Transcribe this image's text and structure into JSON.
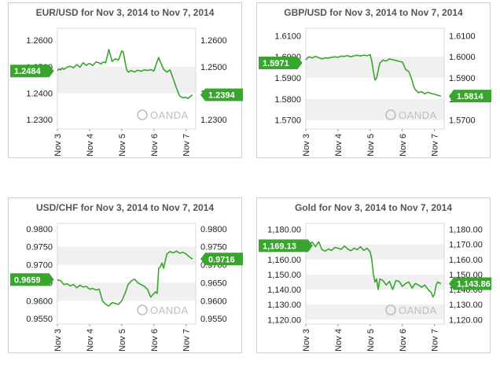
{
  "colors": {
    "line": "#3aa52e",
    "badge": "#3aa52e",
    "band": "#f0f0f0",
    "border": "#cfcfcf"
  },
  "watermark": "OANDA",
  "watermark_icon": "oanda-logo-icon",
  "chart_data": [
    {
      "type": "line",
      "title": "EUR/USD for Nov 3, 2014 to Nov 7, 2014",
      "x_ticks": [
        "Nov 3",
        "Nov 4",
        "Nov 5",
        "Nov 6",
        "Nov 7"
      ],
      "x_range": [
        0,
        4.3
      ],
      "y_ticks": [
        "1.2600",
        "1.2500",
        "1.2400",
        "1.2300"
      ],
      "y_tick_values": [
        1.26,
        1.25,
        1.24,
        1.23
      ],
      "ylim": [
        1.2265,
        1.2645
      ],
      "open_label": "1.2484",
      "open_value": 1.2484,
      "last_label": "1.2394",
      "last_value": 1.2394,
      "series": [
        {
          "x": [
            0,
            0.05,
            0.1,
            0.15,
            0.2,
            0.3,
            0.4,
            0.5,
            0.6,
            0.7,
            0.8,
            0.9,
            0.95,
            1.0,
            1.1,
            1.2,
            1.3,
            1.35,
            1.4,
            1.45,
            1.5,
            1.6,
            1.7,
            1.8,
            1.9,
            2.0,
            2.05,
            2.1,
            2.15,
            2.2,
            2.3,
            2.4,
            2.5,
            2.6,
            2.7,
            2.8,
            2.9,
            3.0,
            3.1,
            3.15,
            3.2,
            3.25,
            3.3,
            3.4,
            3.5,
            3.6,
            3.7,
            3.8,
            3.9,
            4.0,
            4.05,
            4.1,
            4.2
          ],
          "y": [
            1.2485,
            1.2492,
            1.2488,
            1.2495,
            1.249,
            1.2498,
            1.2502,
            1.2496,
            1.2508,
            1.2498,
            1.2515,
            1.2505,
            1.251,
            1.2512,
            1.2505,
            1.2518,
            1.2515,
            1.251,
            1.2516,
            1.2518,
            1.2515,
            1.2565,
            1.252,
            1.253,
            1.2525,
            1.256,
            1.2555,
            1.252,
            1.249,
            1.248,
            1.2486,
            1.248,
            1.2487,
            1.2483,
            1.2488,
            1.2486,
            1.2489,
            1.2484,
            1.252,
            1.2535,
            1.2518,
            1.2505,
            1.249,
            1.248,
            1.2488,
            1.2455,
            1.242,
            1.239,
            1.2383,
            1.2385,
            1.238,
            1.2385,
            1.2394
          ]
        }
      ]
    },
    {
      "type": "line",
      "title": "GBP/USD for Nov 3, 2014 to Nov 7, 2014",
      "x_ticks": [
        "Nov 3",
        "Nov 4",
        "Nov 5",
        "Nov 6",
        "Nov 7"
      ],
      "x_range": [
        0,
        4.3
      ],
      "y_ticks": [
        "1.6100",
        "1.6000",
        "1.5900",
        "1.5800",
        "1.5700"
      ],
      "y_tick_values": [
        1.61,
        1.6,
        1.59,
        1.58,
        1.57
      ],
      "ylim": [
        1.5658,
        1.6135
      ],
      "open_label": "1.5971",
      "open_value": 1.5971,
      "last_label": "1.5814",
      "last_value": 1.5814,
      "series": [
        {
          "x": [
            0,
            0.05,
            0.1,
            0.2,
            0.3,
            0.4,
            0.5,
            0.6,
            0.7,
            0.8,
            0.9,
            1.0,
            1.1,
            1.2,
            1.3,
            1.4,
            1.5,
            1.6,
            1.7,
            1.8,
            1.9,
            2.0,
            2.05,
            2.1,
            2.15,
            2.2,
            2.3,
            2.4,
            2.5,
            2.6,
            2.7,
            2.8,
            2.9,
            3.0,
            3.05,
            3.1,
            3.2,
            3.3,
            3.35,
            3.4,
            3.5,
            3.6,
            3.7,
            3.8,
            3.9,
            4.0,
            4.1,
            4.2
          ],
          "y": [
            1.5985,
            1.5995,
            1.6,
            1.5995,
            1.6002,
            1.5996,
            1.599,
            1.5995,
            1.5994,
            1.5998,
            1.6,
            1.5998,
            1.6003,
            1.6002,
            1.6006,
            1.6,
            1.6005,
            1.6007,
            1.6004,
            1.6008,
            1.6005,
            1.601,
            1.598,
            1.593,
            1.589,
            1.59,
            1.597,
            1.5985,
            1.598,
            1.599,
            1.5986,
            1.5983,
            1.5978,
            1.5975,
            1.596,
            1.594,
            1.593,
            1.589,
            1.586,
            1.5845,
            1.583,
            1.5835,
            1.5825,
            1.5832,
            1.5826,
            1.5823,
            1.5818,
            1.5814
          ]
        }
      ]
    },
    {
      "type": "line",
      "title": "USD/CHF for Nov 3, 2014 to Nov 7, 2014",
      "x_ticks": [
        "Nov 3",
        "Nov 4",
        "Nov 5",
        "Nov 6",
        "Nov 7"
      ],
      "x_range": [
        0,
        4.3
      ],
      "y_ticks": [
        "0.9800",
        "0.9750",
        "0.9700",
        "0.9650",
        "0.9600",
        "0.9550"
      ],
      "y_tick_values": [
        0.98,
        0.975,
        0.97,
        0.965,
        0.96,
        0.955
      ],
      "ylim": [
        0.9535,
        0.9815
      ],
      "open_label": "0.9659",
      "open_value": 0.9659,
      "last_label": "0.9716",
      "last_value": 0.9716,
      "series": [
        {
          "x": [
            0,
            0.1,
            0.2,
            0.3,
            0.4,
            0.5,
            0.6,
            0.7,
            0.8,
            0.9,
            1.0,
            1.1,
            1.2,
            1.3,
            1.4,
            1.5,
            1.6,
            1.7,
            1.8,
            1.9,
            2.0,
            2.1,
            2.2,
            2.3,
            2.4,
            2.5,
            2.6,
            2.7,
            2.8,
            2.9,
            3.0,
            3.05,
            3.1,
            3.15,
            3.2,
            3.25,
            3.3,
            3.4,
            3.5,
            3.6,
            3.7,
            3.8,
            3.9,
            4.0,
            4.1,
            4.2
          ],
          "y": [
            0.9658,
            0.9656,
            0.9645,
            0.9647,
            0.9641,
            0.9645,
            0.9636,
            0.9643,
            0.9638,
            0.964,
            0.9632,
            0.9634,
            0.963,
            0.9632,
            0.96,
            0.959,
            0.9585,
            0.9595,
            0.9592,
            0.959,
            0.96,
            0.962,
            0.9645,
            0.9655,
            0.966,
            0.965,
            0.9645,
            0.964,
            0.9632,
            0.961,
            0.962,
            0.9625,
            0.962,
            0.969,
            0.9695,
            0.9705,
            0.969,
            0.973,
            0.9737,
            0.9733,
            0.9738,
            0.9732,
            0.9735,
            0.973,
            0.9722,
            0.9716
          ]
        }
      ]
    },
    {
      "type": "line",
      "title": "Gold for Nov 3, 2014 to Nov 7, 2014",
      "x_ticks": [
        "Nov 3",
        "Nov 4",
        "Nov 5",
        "Nov 6",
        "Nov 7"
      ],
      "x_range": [
        0,
        4.3
      ],
      "y_ticks": [
        "1,180.00",
        "1,170.00",
        "1,160.00",
        "1,150.00",
        "1,140.00",
        "1,130.00",
        "1,120.00"
      ],
      "y_tick_values": [
        1180,
        1170,
        1160,
        1150,
        1140,
        1130,
        1120
      ],
      "ylim": [
        1117,
        1184
      ],
      "open_label": "1,169.13",
      "open_value": 1169.13,
      "last_label": "1,143.86",
      "last_value": 1143.86,
      "series": [
        {
          "x": [
            0,
            0.1,
            0.2,
            0.3,
            0.4,
            0.5,
            0.6,
            0.7,
            0.8,
            0.9,
            1.0,
            1.1,
            1.2,
            1.3,
            1.4,
            1.5,
            1.6,
            1.7,
            1.8,
            1.9,
            2.0,
            2.05,
            2.1,
            2.15,
            2.2,
            2.25,
            2.3,
            2.4,
            2.5,
            2.6,
            2.7,
            2.8,
            2.9,
            3.0,
            3.1,
            3.2,
            3.3,
            3.4,
            3.5,
            3.6,
            3.7,
            3.8,
            3.85,
            3.9,
            3.95,
            4.0,
            4.05,
            4.1,
            4.2
          ],
          "y": [
            1169.5,
            1170.5,
            1171.5,
            1168.5,
            1171.8,
            1166.5,
            1165.5,
            1167.0,
            1166.0,
            1168.0,
            1167.5,
            1166.8,
            1169.0,
            1167.0,
            1165.8,
            1167.5,
            1166.5,
            1168.5,
            1166.0,
            1167.5,
            1165.0,
            1160.0,
            1150.0,
            1145.0,
            1147.0,
            1140.0,
            1147.0,
            1146.0,
            1143.0,
            1145.5,
            1140.0,
            1146.0,
            1145.5,
            1142.0,
            1144.0,
            1145.0,
            1141.0,
            1144.0,
            1143.0,
            1141.5,
            1143.0,
            1140.0,
            1139.0,
            1138.0,
            1135.0,
            1137.0,
            1143.0,
            1145.0,
            1143.86
          ]
        }
      ]
    }
  ]
}
